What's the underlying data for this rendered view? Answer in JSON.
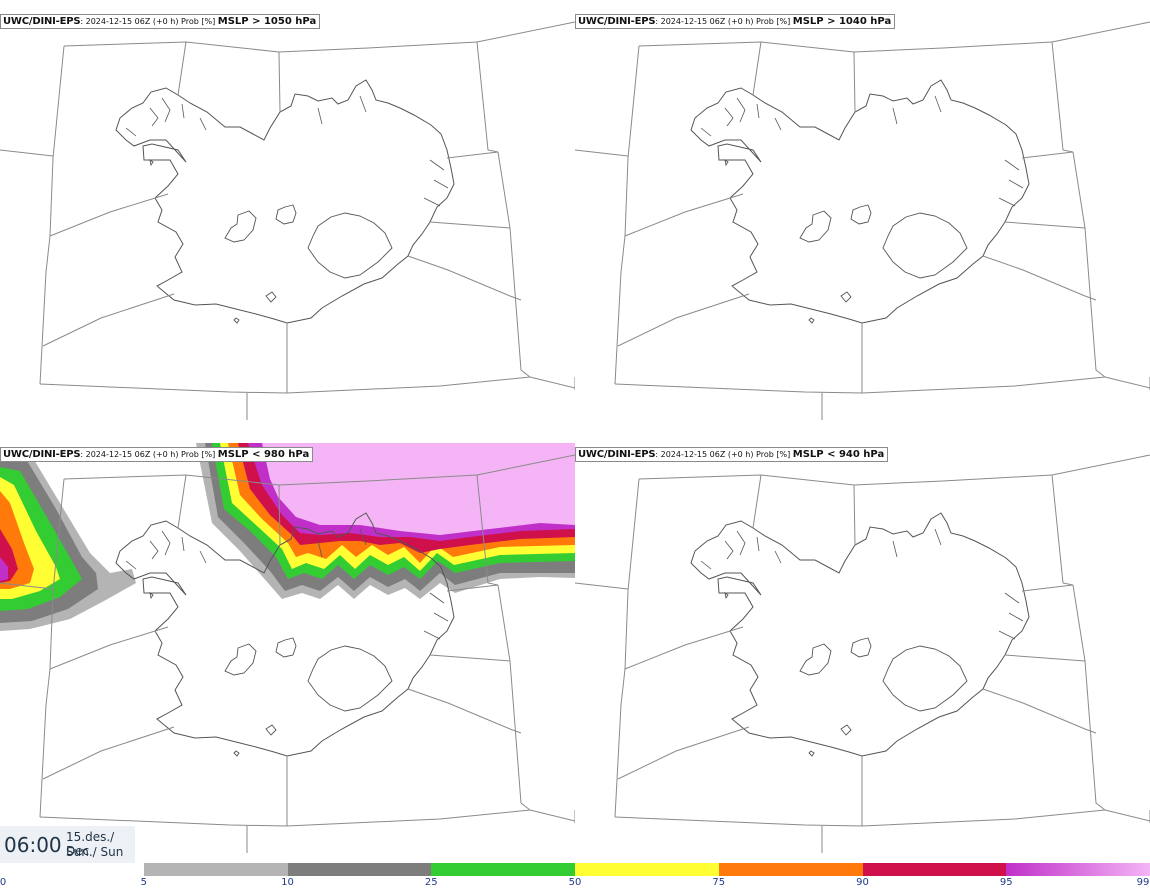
{
  "panels": [
    {
      "id": "tl",
      "model": "UWC/DINI-EPS",
      "meta": ": 2024-12-15 06Z (+0 h) Prob [%]",
      "param": "MSLP > 1050 hPa"
    },
    {
      "id": "tr",
      "model": "UWC/DINI-EPS",
      "meta": ": 2024-12-15 06Z (+0 h) Prob [%]",
      "param": "MSLP > 1040 hPa"
    },
    {
      "id": "bl",
      "model": "UWC/DINI-EPS",
      "meta": ": 2024-12-15 06Z (+0 h) Prob [%]",
      "param": "MSLP < 980 hPa"
    },
    {
      "id": "br",
      "model": "UWC/DINI-EPS",
      "meta": ": 2024-12-15 06Z (+0 h) Prob [%]",
      "param": "MSLP < 940 hPa"
    }
  ],
  "time": {
    "clock": "06:00",
    "date_line1": "15.des./ Dec",
    "date_line2": "Sun./ Sun"
  },
  "colorbar": {
    "labels": [
      "0",
      "5",
      "10",
      "25",
      "50",
      "75",
      "90",
      "95",
      "99"
    ],
    "segments": [
      {
        "from": "5",
        "to": "10",
        "color": "#b4b4b4"
      },
      {
        "from": "10",
        "to": "25",
        "color": "#7d7d7d"
      },
      {
        "from": "25",
        "to": "50",
        "color": "#33cc33"
      },
      {
        "from": "50",
        "to": "75",
        "color": "#ffff33"
      },
      {
        "from": "75",
        "to": "90",
        "color": "#ff7a0a"
      },
      {
        "from": "90",
        "to": "95",
        "color": "#d0104a"
      },
      {
        "from": "95",
        "to": "99",
        "color": "#c030c8",
        "color_end": "#f4b4f6"
      }
    ]
  },
  "map_colors": {
    "coast": "#555555",
    "boundary": "#8a8a8a",
    "land": "#ffffff"
  }
}
